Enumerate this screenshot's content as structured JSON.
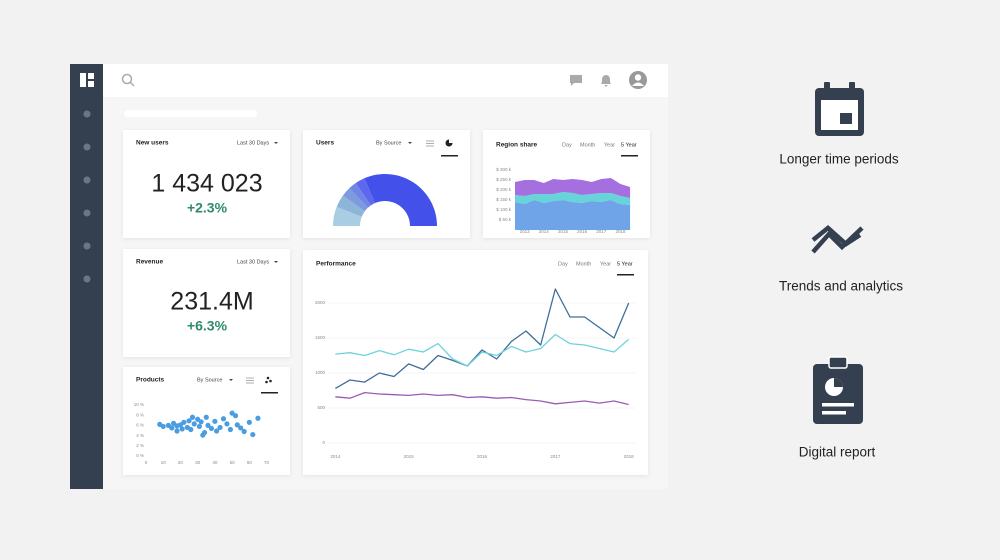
{
  "cards": {
    "new_users": {
      "title": "New users",
      "filter": "Last 30 Days",
      "value": "1 434 023",
      "change": "+2.3%"
    },
    "revenue": {
      "title": "Revenue",
      "filter": "Last 30 Days",
      "value": "231.4M",
      "change": "+6.3%"
    }
  },
  "features": [
    {
      "label": "Longer time periods"
    },
    {
      "label": "Trends and analytics"
    },
    {
      "label": "Digital report"
    }
  ],
  "chart_data": [
    {
      "type": "donut",
      "title": "Users",
      "filter": "By Source",
      "values": [
        12,
        8,
        6,
        5,
        6,
        63
      ],
      "colors": [
        "#a9cde2",
        "#8cb6d8",
        "#7e9ade",
        "#6f86e6",
        "#5d68ee",
        "#4350ea"
      ]
    },
    {
      "type": "area",
      "title": "Region share",
      "tabs": [
        "Day",
        "Month",
        "Year",
        "5 Year"
      ],
      "stacked": true,
      "x": [
        2012.5,
        2013,
        2013.5,
        2014,
        2014.5,
        2015,
        2015.5,
        2016,
        2016.5,
        2017,
        2017.5,
        2018,
        2018.5
      ],
      "series": [
        {
          "color": "#6fa4e8",
          "values": [
            140,
            130,
            150,
            135,
            145,
            150,
            140,
            135,
            145,
            140,
            150,
            130,
            125
          ]
        },
        {
          "color": "#66d4d8",
          "values": [
            35,
            40,
            30,
            45,
            35,
            40,
            45,
            40,
            35,
            45,
            35,
            40,
            35
          ]
        },
        {
          "color": "#a56fe0",
          "values": [
            65,
            80,
            70,
            55,
            75,
            60,
            70,
            75,
            60,
            70,
            75,
            60,
            55
          ]
        }
      ],
      "xlim": [
        2012.5,
        2018.6
      ],
      "xticks": [
        2013,
        2014,
        2015,
        2016,
        2017,
        2018
      ],
      "ylim": [
        0,
        300
      ],
      "yticks": [
        {
          "value": 50,
          "label": "$ 50 k"
        },
        {
          "value": 100,
          "label": "$ 100 k"
        },
        {
          "value": 150,
          "label": "$ 150 k"
        },
        {
          "value": 200,
          "label": "$ 200 k"
        },
        {
          "value": 250,
          "label": "$ 250 k"
        },
        {
          "value": 300,
          "label": "$ 300 k"
        }
      ]
    },
    {
      "type": "line",
      "title": "Performance",
      "tabs": [
        "Day",
        "Month",
        "Year",
        "5 Year"
      ],
      "grid": true,
      "x": [
        2014,
        2014.2,
        2014.4,
        2014.6,
        2014.8,
        2015,
        2015.2,
        2015.4,
        2015.6,
        2015.8,
        2016,
        2016.2,
        2016.4,
        2016.6,
        2016.8,
        2017,
        2017.2,
        2017.4,
        2017.6,
        2017.8,
        2018
      ],
      "series": [
        {
          "color": "#3f6d9a",
          "values": [
            780,
            900,
            870,
            1000,
            950,
            1130,
            1050,
            1250,
            1180,
            1100,
            1330,
            1200,
            1450,
            1600,
            1400,
            2200,
            1800,
            1800,
            1650,
            1500,
            2000
          ]
        },
        {
          "color": "#6fd3dc",
          "values": [
            1270,
            1290,
            1250,
            1320,
            1260,
            1340,
            1300,
            1420,
            1200,
            1100,
            1300,
            1250,
            1380,
            1300,
            1350,
            1550,
            1420,
            1400,
            1350,
            1300,
            1480
          ]
        },
        {
          "color": "#9b5bb5",
          "values": [
            660,
            640,
            720,
            700,
            690,
            680,
            700,
            680,
            690,
            650,
            660,
            640,
            650,
            620,
            600,
            560,
            580,
            600,
            570,
            600,
            550
          ]
        }
      ],
      "xlim": [
        2013.9,
        2018.1
      ],
      "xticks": [
        2014,
        2015,
        2016,
        2017,
        2018
      ],
      "ylim": [
        0,
        2200
      ],
      "yticks": [
        0,
        500,
        1000,
        1500,
        2000
      ]
    },
    {
      "type": "scatter",
      "title": "Products",
      "filter": "By Source",
      "color": "#4a9de0",
      "x": [
        8,
        10,
        13,
        15,
        16,
        18,
        20,
        21,
        22,
        24,
        25,
        26,
        28,
        30,
        31,
        32,
        34,
        35,
        36,
        38,
        40,
        41,
        43,
        45,
        47,
        49,
        50,
        52,
        53,
        55,
        57,
        60,
        62,
        65,
        18,
        27,
        33
      ],
      "values": [
        6.2,
        5.8,
        6,
        5.5,
        6.4,
        5.9,
        6.1,
        5.3,
        6.6,
        5.6,
        6.9,
        5.2,
        6.3,
        7.2,
        5.8,
        6.7,
        4.6,
        7.6,
        6,
        5.4,
        6.8,
        4.9,
        5.6,
        7.3,
        6.3,
        5.2,
        8.4,
        7.9,
        6.1,
        5.5,
        4.8,
        6.6,
        4.2,
        7.4,
        4.9,
        7.6,
        4.1
      ],
      "xlim": [
        0,
        72
      ],
      "xticks": [
        0,
        10,
        20,
        30,
        40,
        50,
        60,
        70
      ],
      "ylim": [
        0,
        10
      ],
      "yticks": [
        {
          "value": 0,
          "label": "0 %"
        },
        {
          "value": 2,
          "label": "2 %"
        },
        {
          "value": 4,
          "label": "4 %"
        },
        {
          "value": 6,
          "label": "6 %"
        },
        {
          "value": 8,
          "label": "8 %"
        },
        {
          "value": 10,
          "label": "10 %"
        }
      ]
    }
  ]
}
